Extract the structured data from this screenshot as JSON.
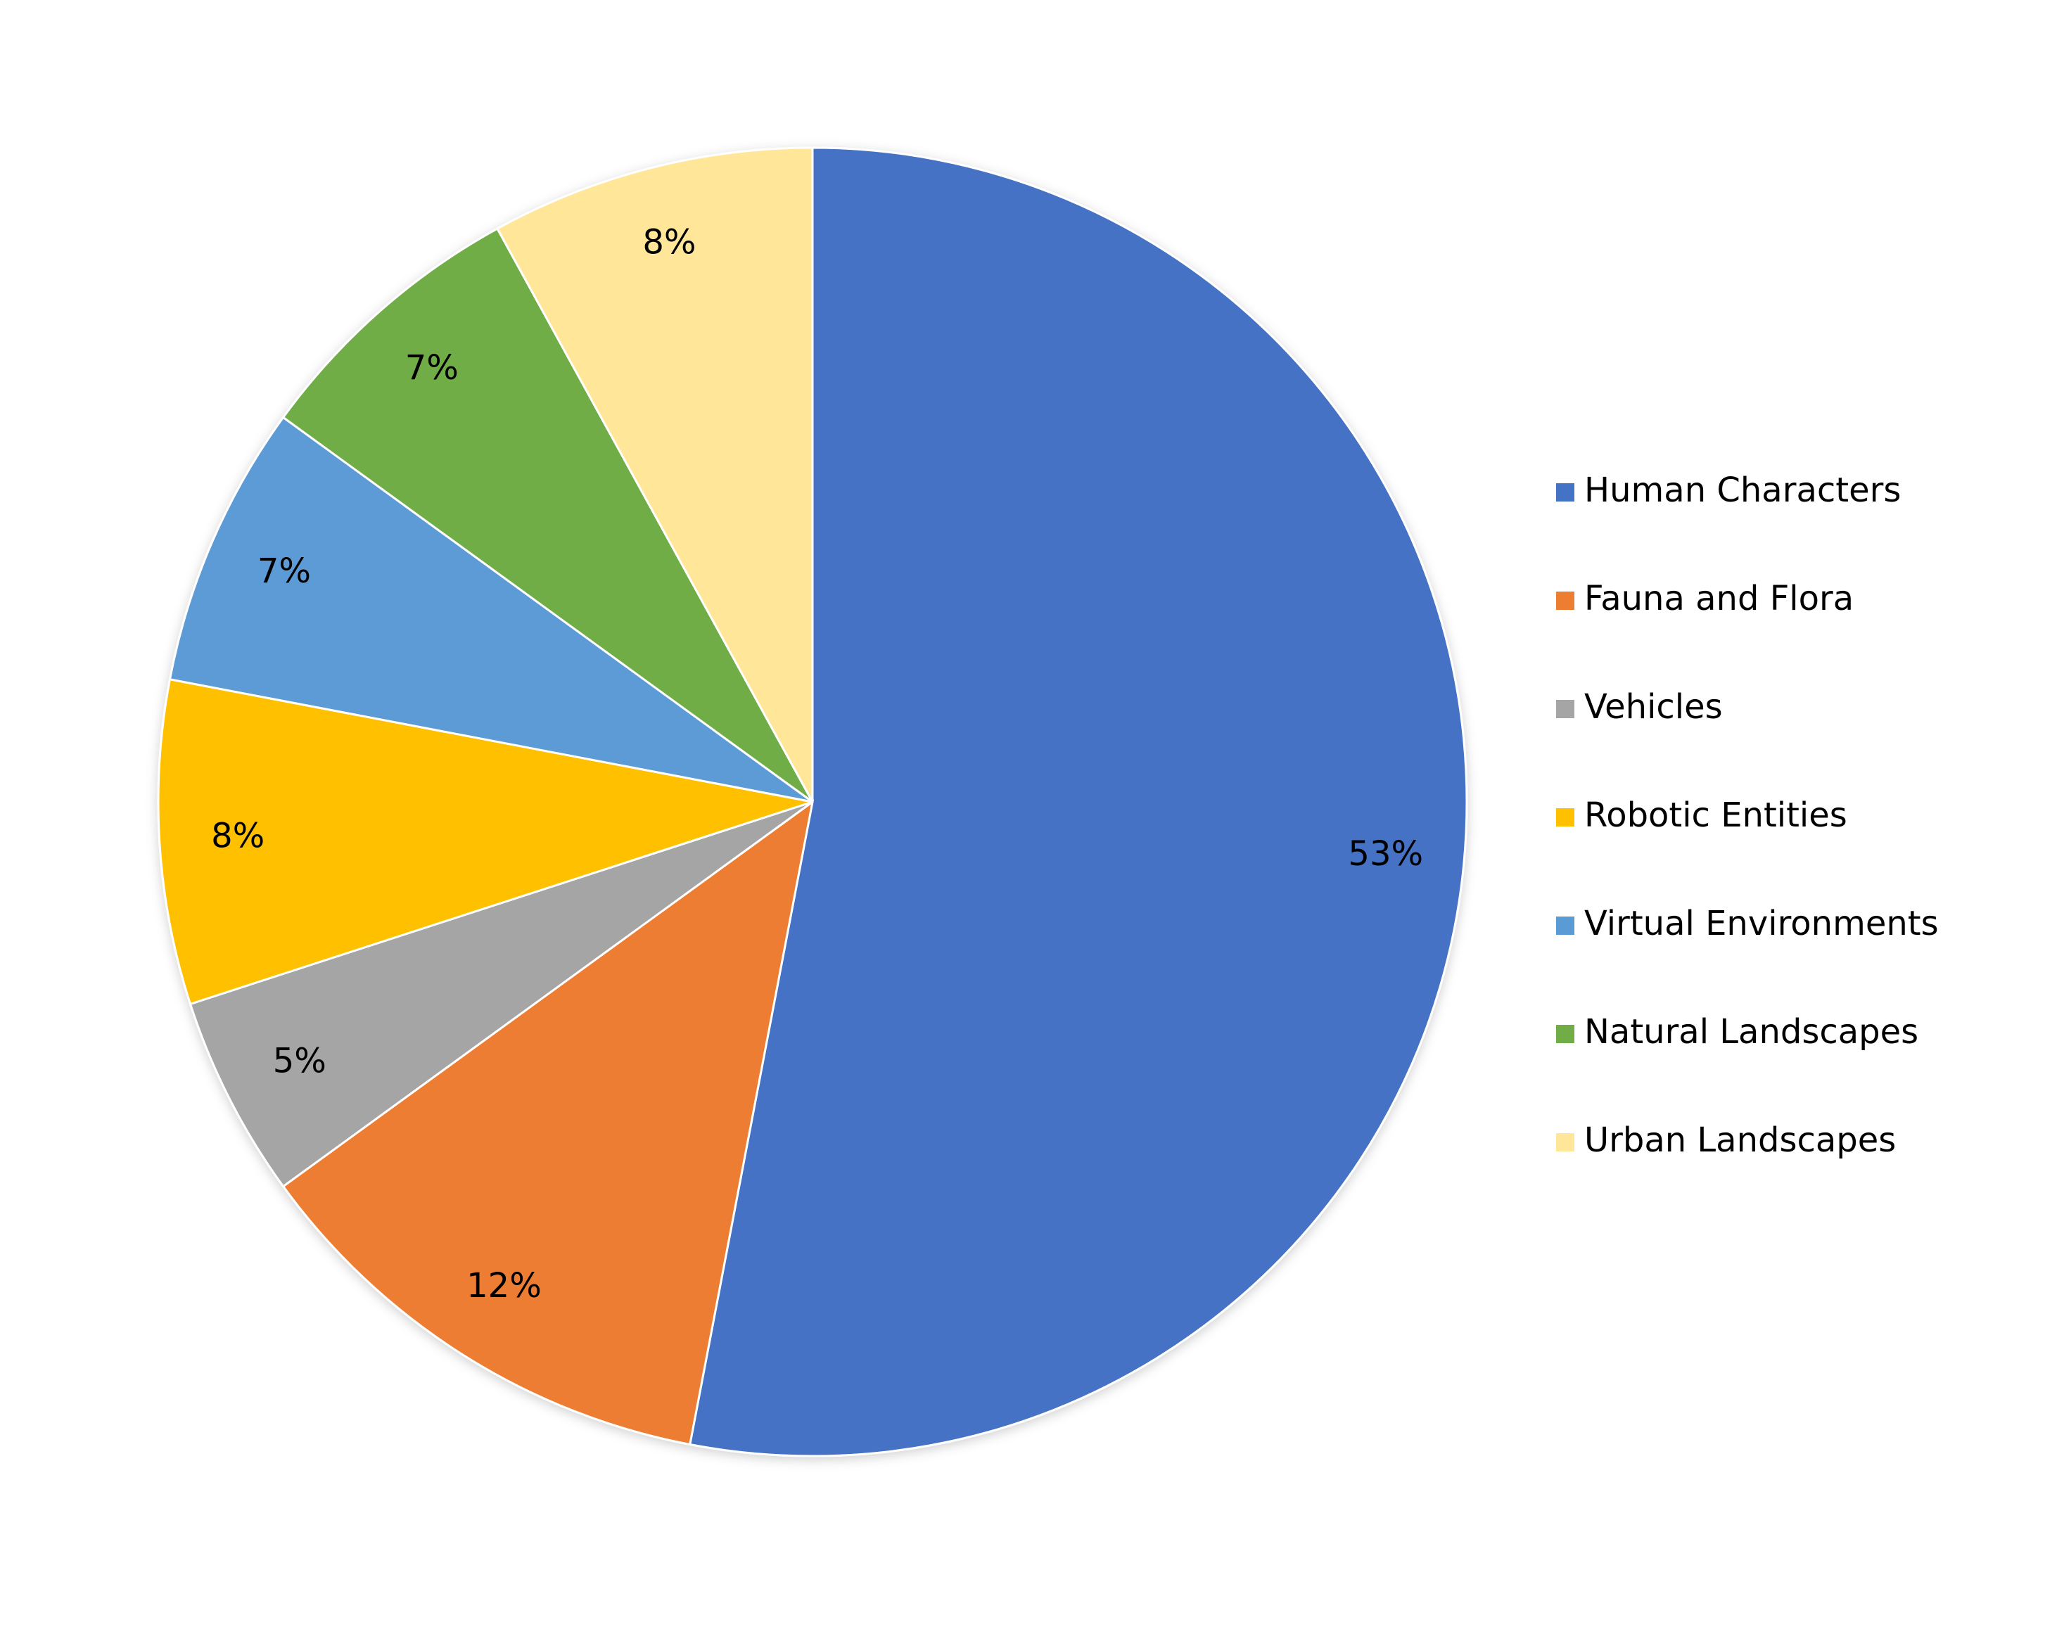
{
  "chart_data": {
    "type": "pie",
    "categories": [
      "Human Characters",
      "Fauna and Flora",
      "Vehicles",
      "Robotic Entities",
      "Virtual Environments",
      "Natural Landscapes",
      "Urban Landscapes"
    ],
    "values": [
      53,
      12,
      5,
      8,
      7,
      7,
      8
    ],
    "value_labels": [
      "53%",
      "12%",
      "5%",
      "8%",
      "7%",
      "7%",
      "8%"
    ],
    "colors": [
      "#4472c4",
      "#ed7d31",
      "#a5a5a5",
      "#ffc000",
      "#5b9bd5",
      "#70ad47",
      "#ffe699"
    ],
    "legend": "right"
  }
}
